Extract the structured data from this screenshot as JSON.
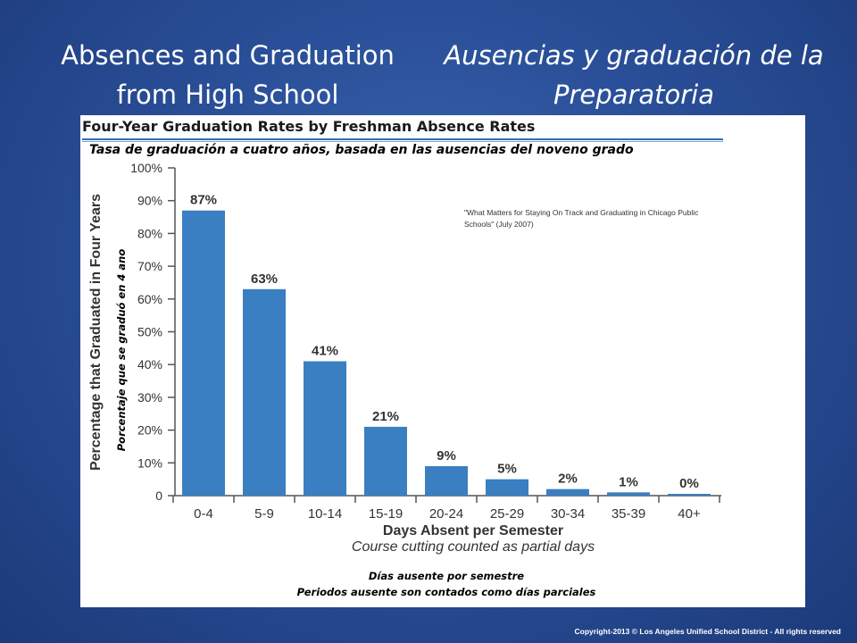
{
  "slide": {
    "title_en": "Absences and Graduation from High School",
    "title_es": "Ausencias y graduación de la Preparatoria",
    "copyright": "Copyright-2013 © Los Angeles Unified School District - All rights reserved"
  },
  "chart_data": {
    "type": "bar",
    "title": "Four-Year Graduation Rates by Freshman Absence Rates",
    "subtitle": "Tasa de graduación a cuatro años, basada en las ausencias del noveno grado",
    "source": "\"What Matters for Staying On Track and Graduating in Chicago Public Schools\" (July 2007)",
    "categories": [
      "0-4",
      "5-9",
      "10-14",
      "15-19",
      "20-24",
      "25-29",
      "30-34",
      "35-39",
      "40+"
    ],
    "values": [
      87,
      63,
      41,
      21,
      9,
      5,
      2,
      1,
      0
    ],
    "data_labels": [
      "87%",
      "63%",
      "41%",
      "21%",
      "9%",
      "5%",
      "2%",
      "1%",
      "0%"
    ],
    "ylim": [
      0,
      100
    ],
    "ytick_labels": [
      "0",
      "10%",
      "20%",
      "30%",
      "40%",
      "50%",
      "60%",
      "70%",
      "80%",
      "90%",
      "100%"
    ],
    "ylabel": "Percentage that Graduated in Four Years",
    "ylabel_es": "Porcentaje que se graduó en 4 ano",
    "xlabel": "Days Absent per Semester",
    "xlabel_note": "Course cutting counted as partial days",
    "xlabel_es": "Días ausente por semestre",
    "xlabel_note_es": "Periodos ausente son contados como días parciales",
    "bar_color": "#3a7fc1",
    "grid": false
  }
}
